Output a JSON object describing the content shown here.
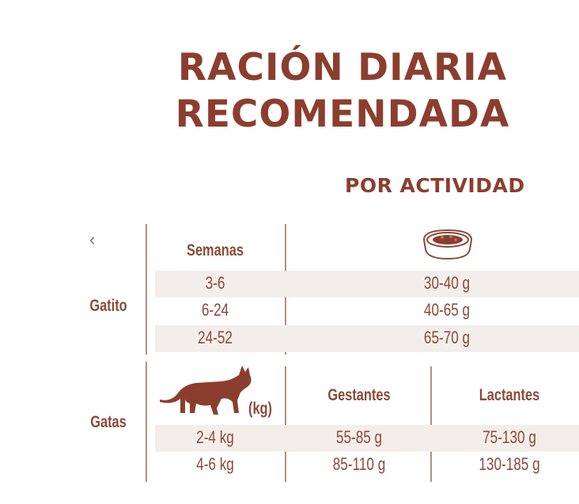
{
  "title_line1": "RACIÓN DIARIA",
  "title_line2": "RECOMENDADA",
  "subtitle": "POR ACTIVIDAD",
  "icons": {
    "back": "chevron-left-icon",
    "bowl": "food-bowl-icon",
    "cat": "cat-silhouette-icon"
  },
  "colors": {
    "title": "#8c3e2e",
    "text": "#8a4a3a",
    "stripe": "#f4eeeb",
    "divider": "#b58f80"
  },
  "kitten": {
    "label": "Gatito",
    "column_header": "Semanas",
    "rows": [
      {
        "age": "3-6",
        "amount": "30-40 g"
      },
      {
        "age": "6-24",
        "amount": "40-65 g"
      },
      {
        "age": "24-52",
        "amount": "65-70 g"
      }
    ]
  },
  "cats": {
    "label": "Gatas",
    "weight_unit": "(kg)",
    "col_pregnant": "Gestantes",
    "col_lactating": "Lactantes",
    "rows": [
      {
        "weight": "2-4 kg",
        "pregnant": "55-85 g",
        "lactating": "75-130 g"
      },
      {
        "weight": "4-6 kg",
        "pregnant": "85-110 g",
        "lactating": "130-185 g"
      }
    ]
  }
}
